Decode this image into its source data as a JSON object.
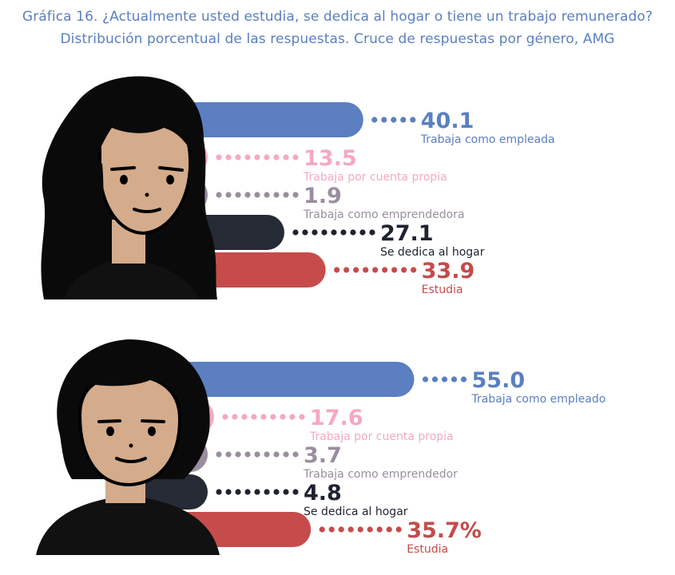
{
  "title": "Gráfica 16. ¿Actualmente usted estudia, se dedica al hogar o tiene un trabajo remunerado?",
  "subtitle": "Distribución porcentual de las respuestas. Cruce de respuestas por género, AMG",
  "colors": {
    "employed": "#5b7fc0",
    "self_employed": "#f4a8c4",
    "entrepreneur": "#9a8e9e",
    "home": "#262a35",
    "study": "#c64b4b",
    "skin": "#d4ab8b",
    "hair": "#0a0a0a"
  },
  "chart_data": [
    {
      "type": "bar",
      "group": "women",
      "icon": "woman-avatar-icon",
      "categories": [
        "Trabaja como empleada",
        "Trabaja por cuenta propia",
        "Trabaja como emprendedora",
        "Se dedica al hogar",
        "Estudia"
      ],
      "value_labels": [
        "40.1",
        "13.5",
        "1.9",
        "27.1",
        "33.9"
      ],
      "values": [
        40.1,
        13.5,
        1.9,
        27.1,
        33.9
      ]
    },
    {
      "type": "bar",
      "group": "men",
      "icon": "man-avatar-icon",
      "categories": [
        "Trabaja como empleado",
        "Trabaja por cuenta propia",
        "Trabaja como emprendedor",
        "Se dedica al hogar",
        "Estudia"
      ],
      "value_labels": [
        "55.0",
        "17.6",
        "3.7",
        "4.8",
        "35.7%"
      ],
      "values": [
        55.0,
        17.6,
        3.7,
        4.8,
        35.7
      ]
    }
  ]
}
